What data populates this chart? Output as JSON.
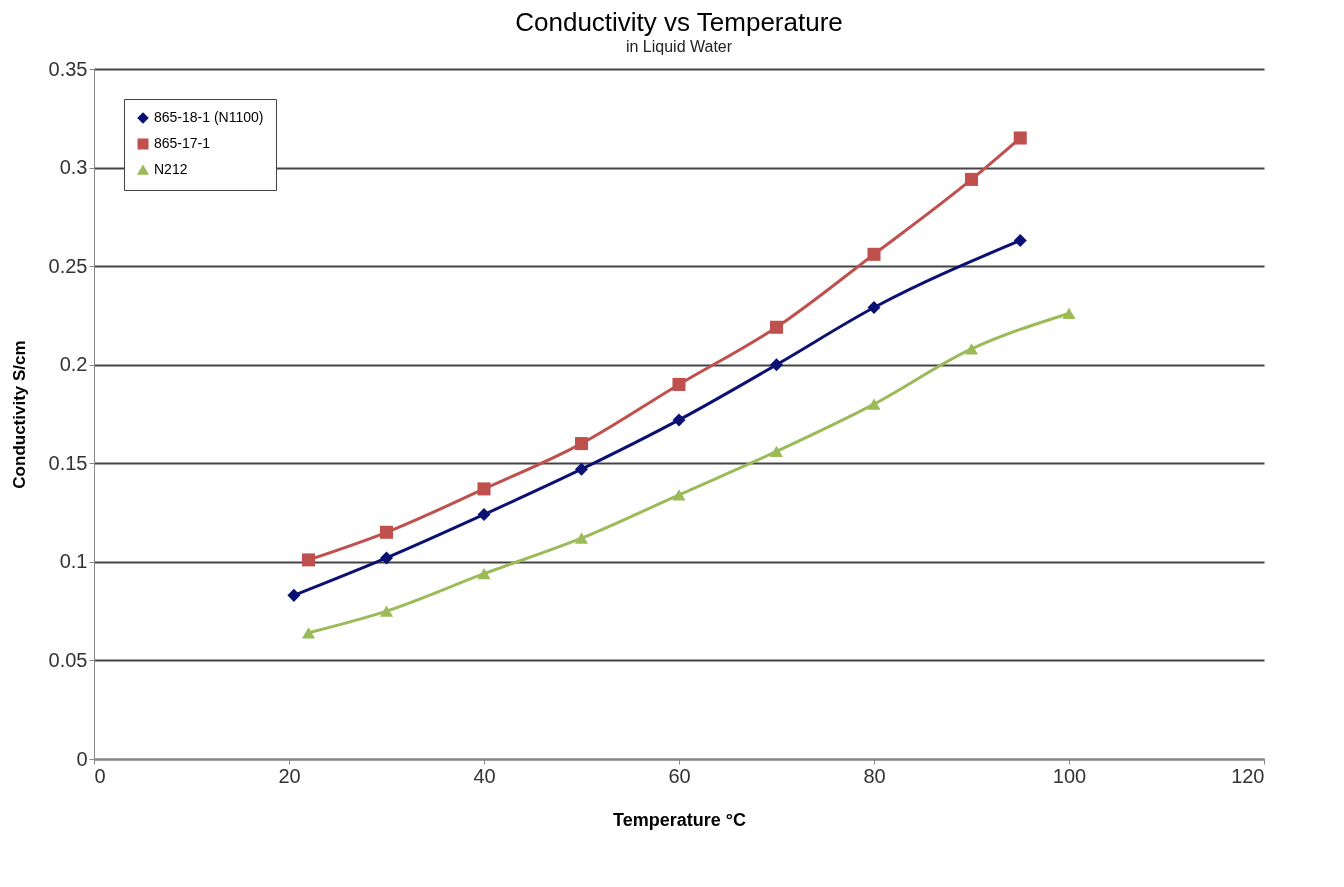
{
  "chart_data": {
    "type": "line",
    "title": "Conductivity  vs Temperature",
    "subtitle": "in Liquid Water",
    "xlabel": "Temperature °C",
    "ylabel": "Conductivity  S/cm",
    "series": [
      {
        "name": "865-18-1 (N1100)",
        "color": "#0a1172",
        "marker": "diamond",
        "x": [
          20.5,
          30,
          40,
          50,
          60,
          70,
          80,
          95
        ],
        "values": [
          0.083,
          0.102,
          0.124,
          0.147,
          0.172,
          0.2,
          0.229,
          0.263
        ]
      },
      {
        "name": "865-17-1",
        "color": "#c0504d",
        "marker": "square",
        "x": [
          22,
          30,
          40,
          50,
          60,
          70,
          80,
          90,
          95
        ],
        "values": [
          0.101,
          0.115,
          0.137,
          0.16,
          0.19,
          0.219,
          0.256,
          0.294,
          0.315
        ]
      },
      {
        "name": "N212",
        "color": "#9bbb59",
        "marker": "triangle",
        "x": [
          22,
          30,
          40,
          50,
          60,
          70,
          80,
          90,
          100
        ],
        "values": [
          0.064,
          0.075,
          0.094,
          0.112,
          0.134,
          0.156,
          0.18,
          0.208,
          0.226
        ]
      }
    ],
    "xlim": [
      0,
      120
    ],
    "xticks": [
      0,
      20,
      40,
      60,
      80,
      100,
      120
    ],
    "ylim": [
      0,
      0.35
    ],
    "yticks": [
      0,
      0.05,
      0.1,
      0.15,
      0.2,
      0.25,
      0.3,
      0.35
    ],
    "grid": "y",
    "legend": "top left",
    "line_style": "solid"
  }
}
